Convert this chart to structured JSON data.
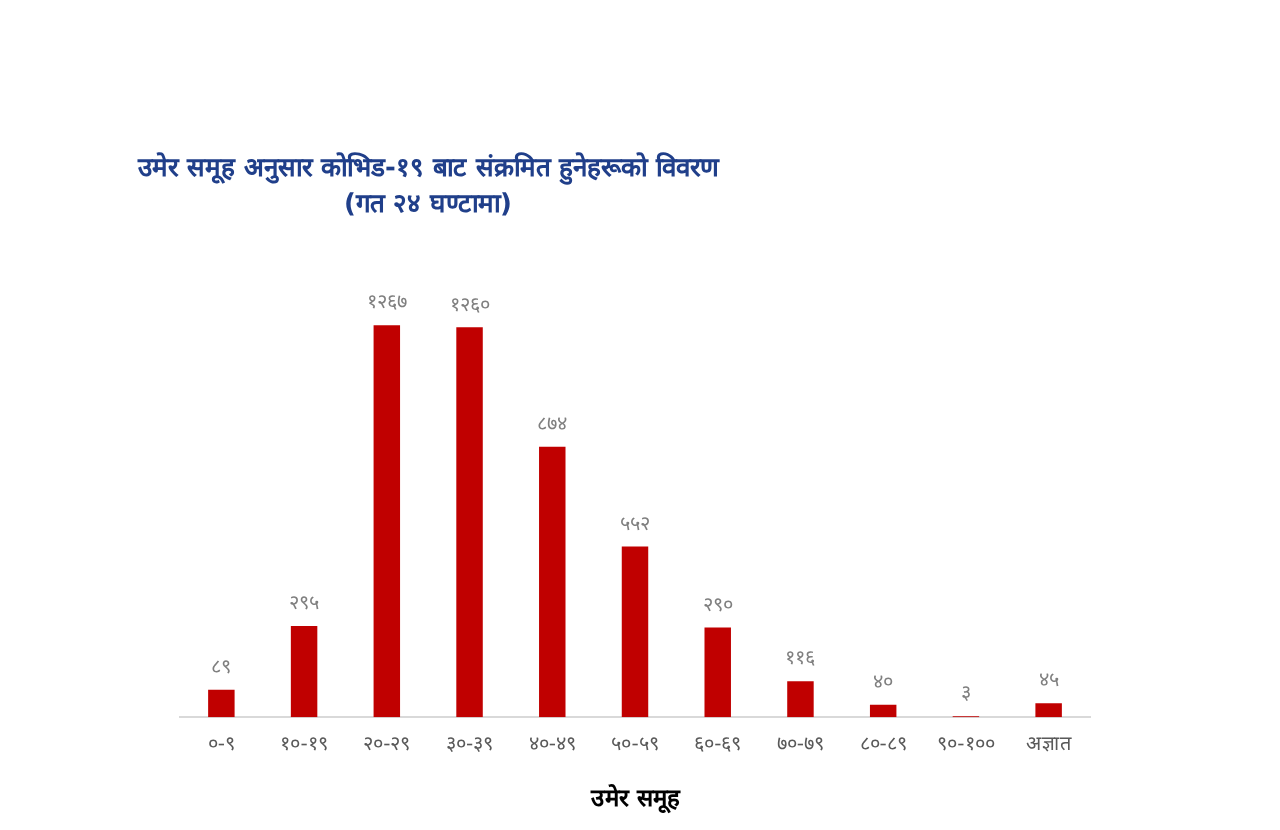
{
  "chart_data": {
    "type": "bar",
    "title": "उमेर समूह अनुसार कोभिड-१९ बाट संक्रमित हुनेहरूको विवरण",
    "subtitle": "(गत २४ घण्टामा)",
    "xlabel": "उमेर समूह",
    "categories": [
      "०-९",
      "१०-१९",
      "२०-२९",
      "३०-३९",
      "४०-४९",
      "५०-५९",
      "६०-६९",
      "७०-७९",
      "८०-८९",
      "९०-१००",
      "अज्ञात"
    ],
    "values": [
      89,
      295,
      1267,
      1260,
      874,
      552,
      290,
      116,
      40,
      3,
      45
    ],
    "value_labels": [
      "८९",
      "२९५",
      "१२६७",
      "१२६०",
      "८७४",
      "५५२",
      "२९०",
      "११६",
      "४०",
      "३",
      "४५"
    ],
    "color": "#c00000",
    "grid": false,
    "legend": false
  }
}
